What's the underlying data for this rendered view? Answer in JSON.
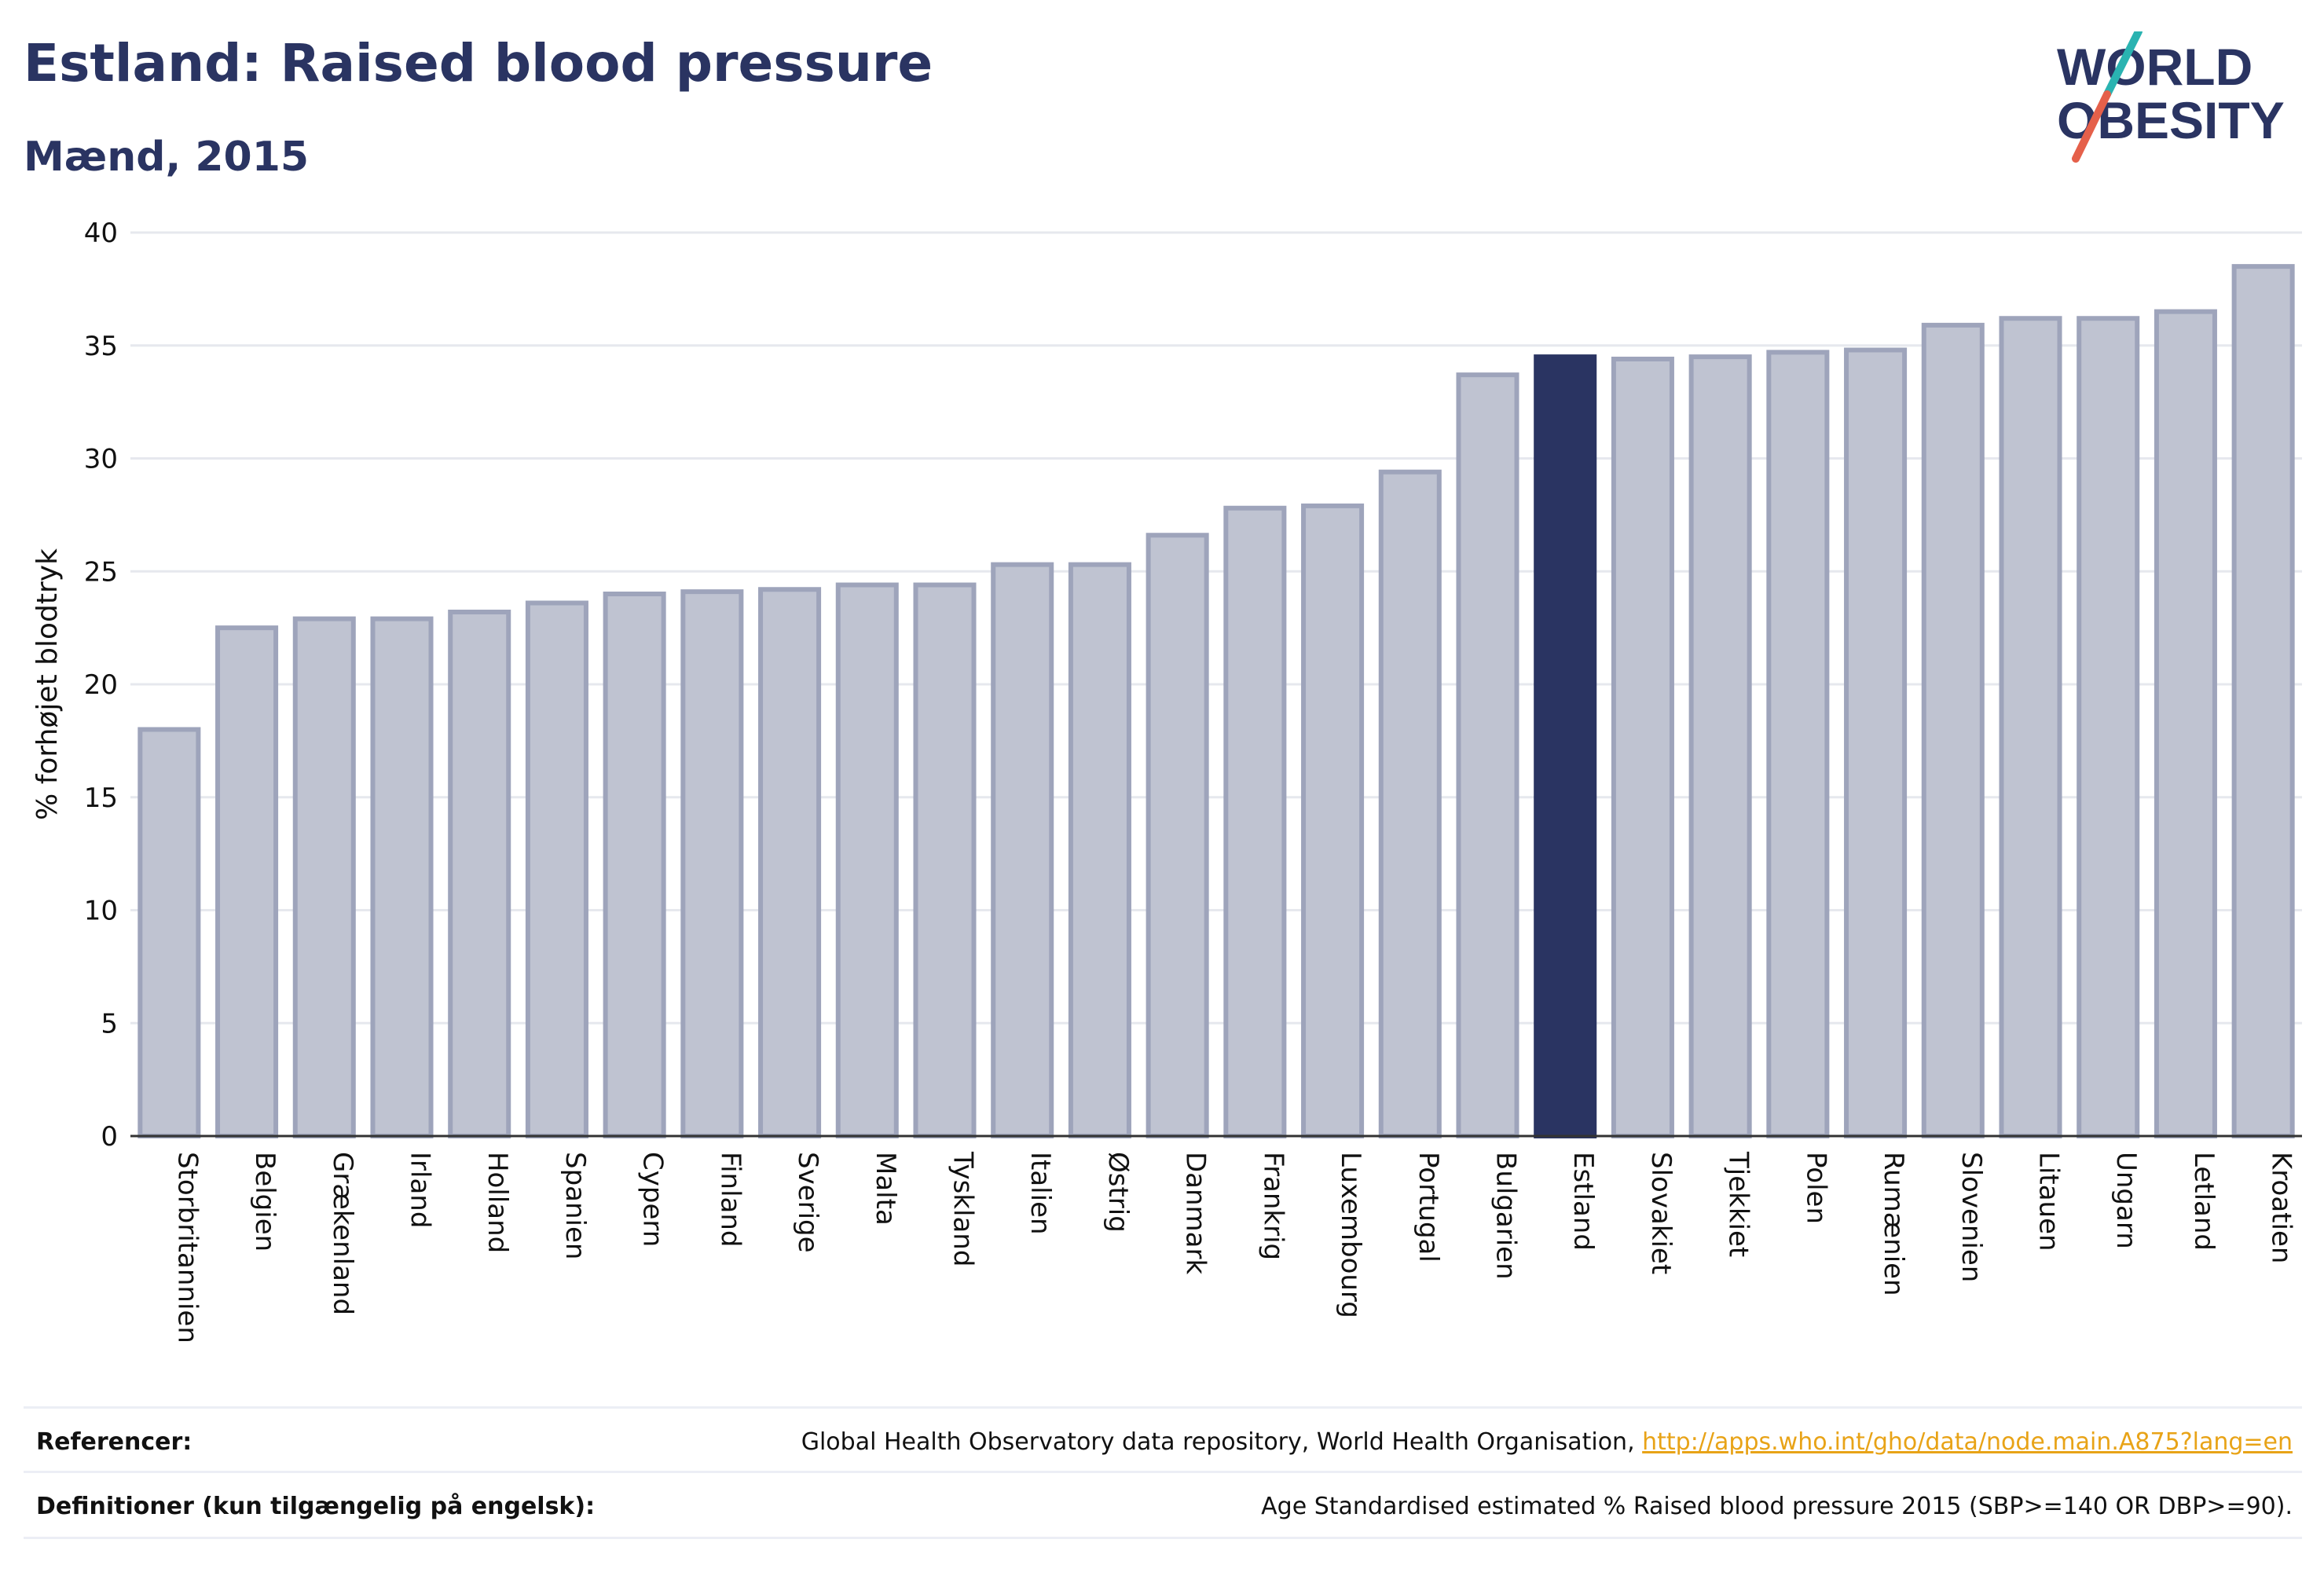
{
  "header": {
    "title": "Estland: Raised blood pressure",
    "subtitle": "Mænd, 2015"
  },
  "logo": {
    "line1": "WORLD",
    "line2": "OBESITY"
  },
  "colors": {
    "bar": "#bfc3d1",
    "bar_border": "#9ea4bb",
    "highlight": "#2a3462",
    "grid": "#e6e8ee",
    "text": "#2a3462",
    "link": "#e8a317",
    "logo_slash_top": "#2ab3b1",
    "logo_slash_bottom": "#e5604a"
  },
  "chart_data": {
    "type": "bar",
    "ylabel": "% forhøjet blodtryk",
    "xlabel": "",
    "ylim": [
      0,
      40
    ],
    "yticks": [
      0,
      5,
      10,
      15,
      20,
      25,
      30,
      35,
      40
    ],
    "grid": true,
    "highlight": "Estland",
    "categories": [
      "Storbritannien",
      "Belgien",
      "Grækenland",
      "Irland",
      "Holland",
      "Spanien",
      "Cypern",
      "Finland",
      "Sverige",
      "Malta",
      "Tyskland",
      "Italien",
      "Østrig",
      "Danmark",
      "Frankrig",
      "Luxembourg",
      "Portugal",
      "Bulgarien",
      "Estland",
      "Slovakiet",
      "Tjekkiet",
      "Polen",
      "Rumænien",
      "Slovenien",
      "Litauen",
      "Ungarn",
      "Letland",
      "Kroatien"
    ],
    "values": [
      18.0,
      22.5,
      22.9,
      22.9,
      23.2,
      23.6,
      24.0,
      24.1,
      24.2,
      24.4,
      24.4,
      25.3,
      25.3,
      26.6,
      27.8,
      27.9,
      29.4,
      33.7,
      34.5,
      34.4,
      34.5,
      34.7,
      34.8,
      35.9,
      36.2,
      36.2,
      36.5,
      38.5
    ]
  },
  "footer": {
    "references_label": "Referencer:",
    "references_text": "Global Health Observatory data repository, World Health Organisation, ",
    "references_link": "http://apps.who.int/gho/data/node.main.A875?lang=en",
    "definitions_label": "Definitioner (kun tilgængelig på engelsk):",
    "definitions_text": "Age Standardised estimated % Raised blood pressure 2015 (SBP>=140 OR DBP>=90)."
  }
}
